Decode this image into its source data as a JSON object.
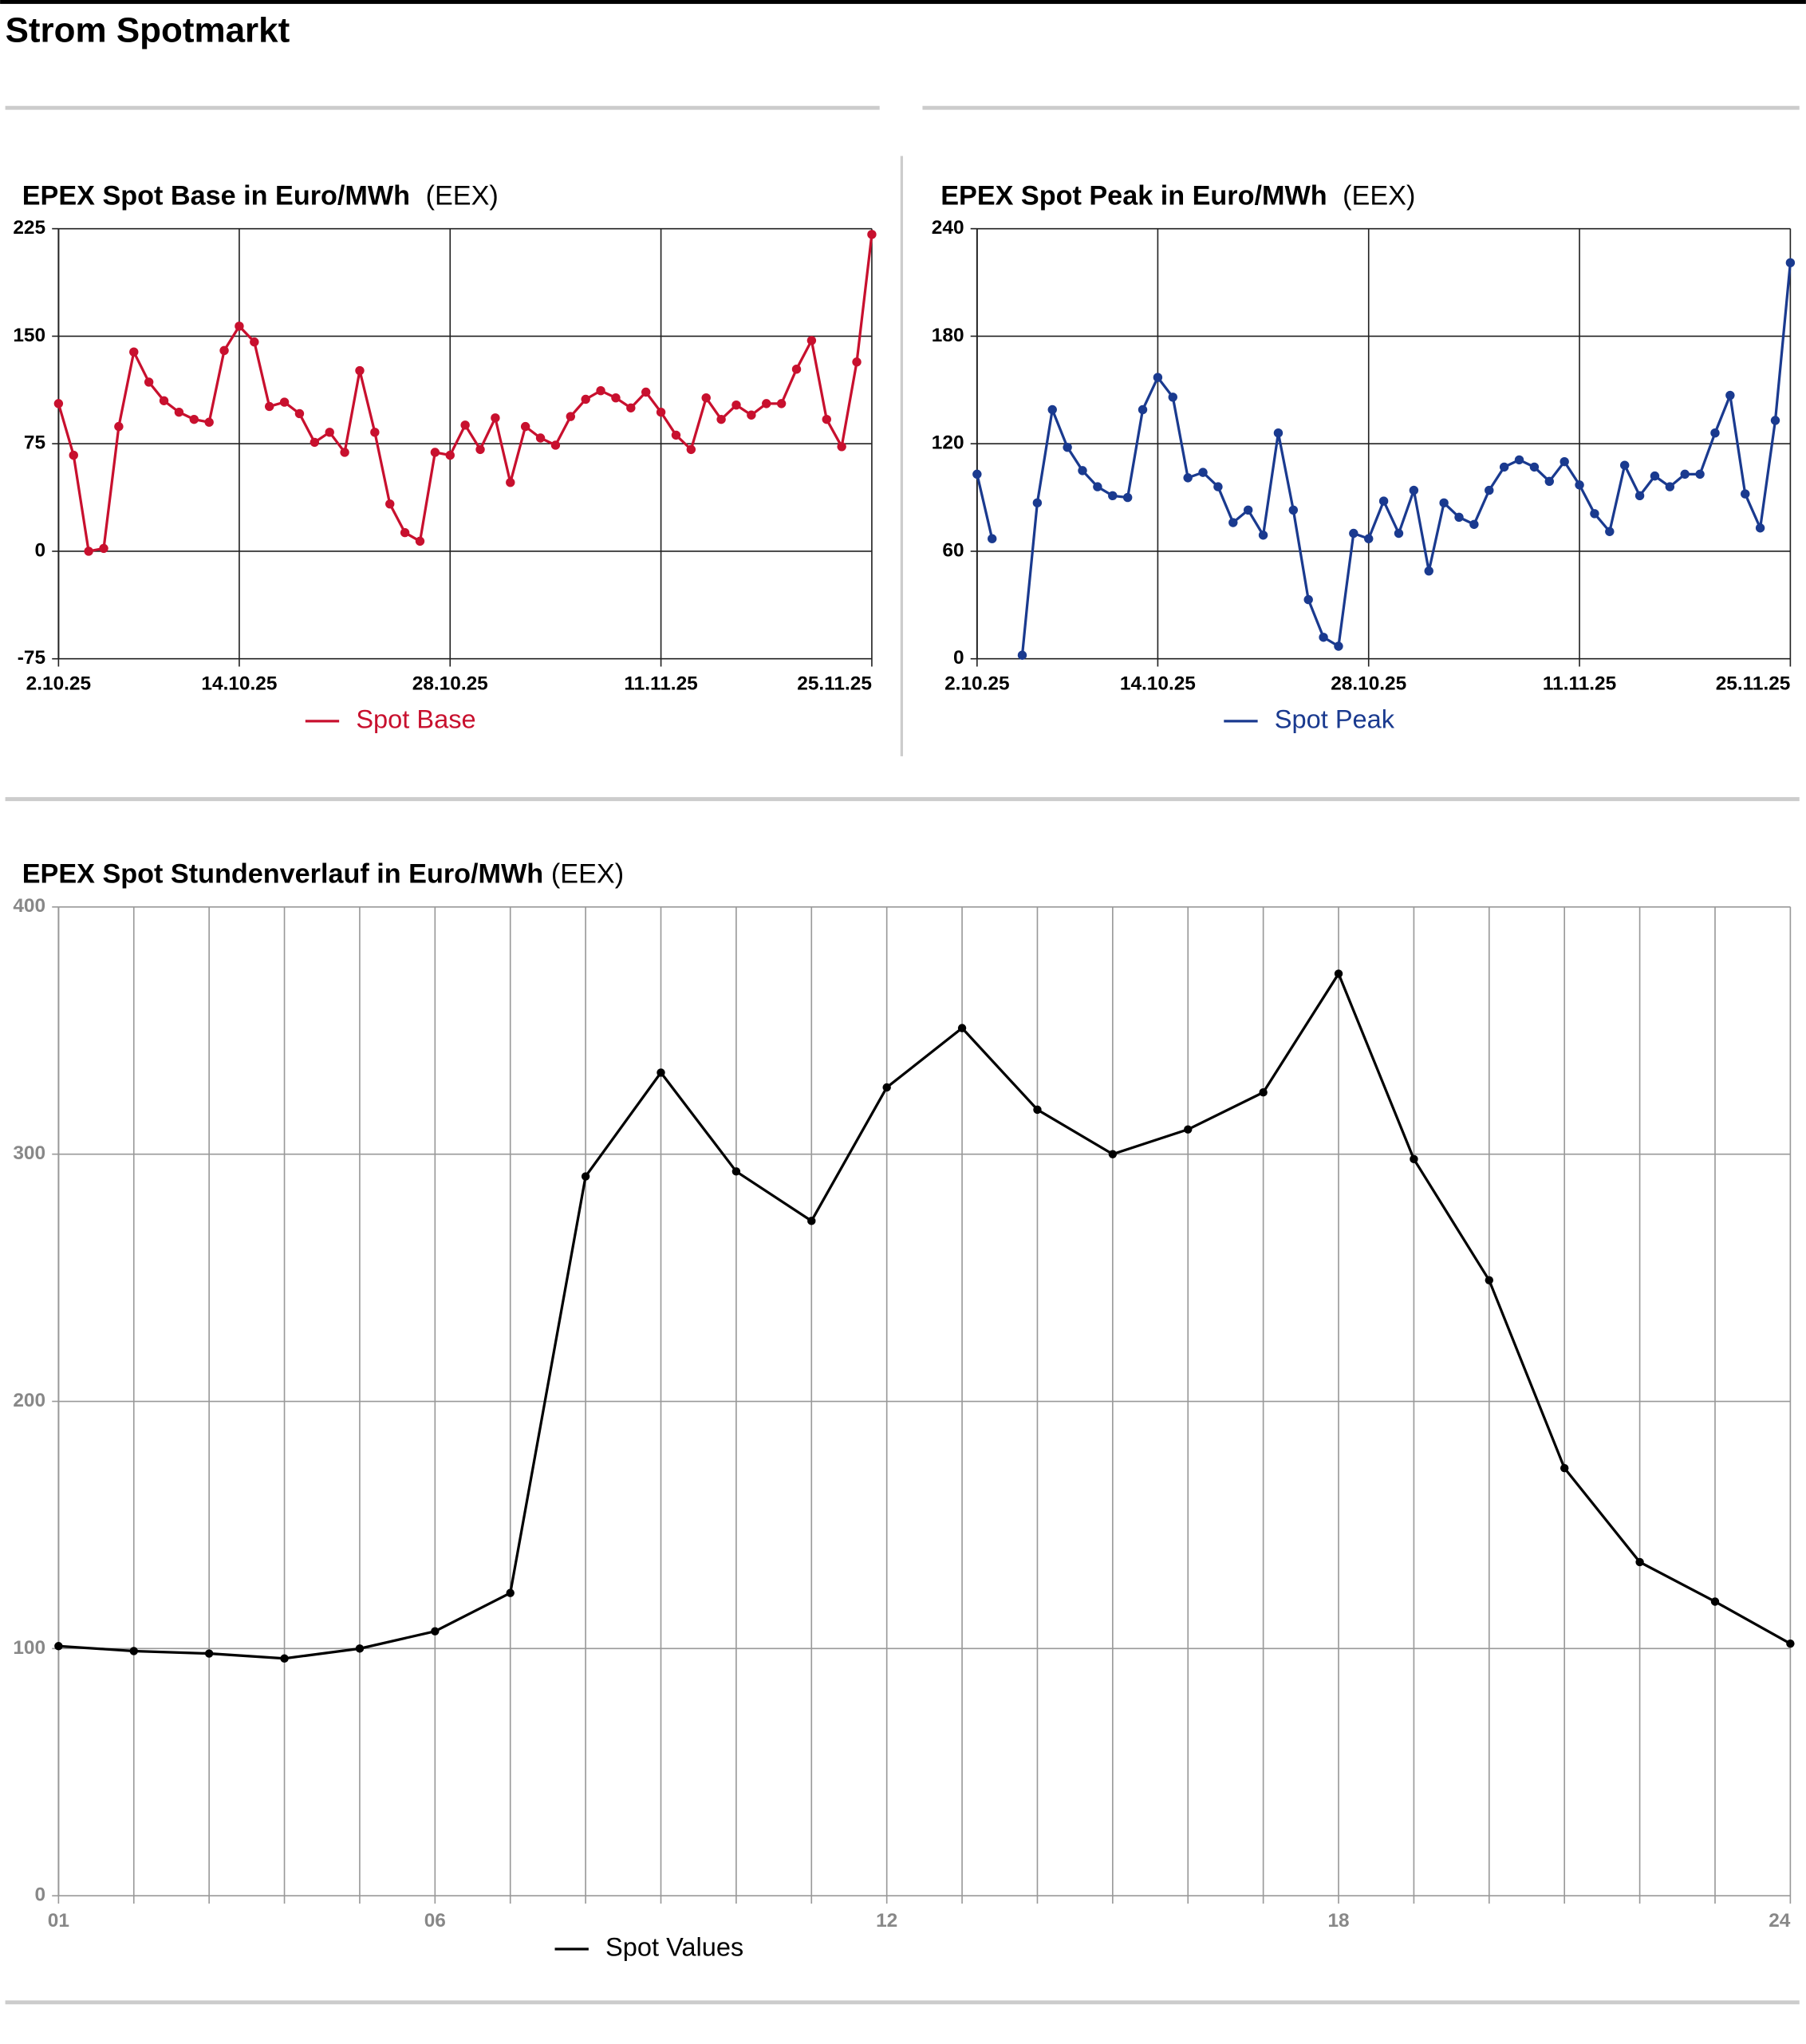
{
  "title": "Strom Spotmarkt",
  "chart_data": [
    {
      "type": "line",
      "title": "EPEX Spot Base in Euro/MWh",
      "source": "(EEX)",
      "categories": [
        "2.10.25",
        null,
        null,
        null,
        null,
        null,
        null,
        null,
        null,
        null,
        null,
        null,
        "14.10.25",
        null,
        null,
        null,
        null,
        null,
        null,
        null,
        null,
        null,
        null,
        null,
        null,
        null,
        "28.10.25",
        null,
        null,
        null,
        null,
        null,
        null,
        null,
        null,
        null,
        null,
        null,
        null,
        null,
        "11.11.25",
        null,
        null,
        null,
        null,
        null,
        null,
        null,
        null,
        null,
        null,
        null,
        null,
        null,
        "25.11.25"
      ],
      "series": [
        {
          "name": "Spot Base",
          "color": "#c8102e",
          "values": [
            103,
            67,
            0,
            2,
            87,
            139,
            118,
            105,
            97,
            92,
            90,
            140,
            157,
            146,
            101,
            104,
            96,
            76,
            83,
            69,
            126,
            83,
            33,
            13,
            7,
            69,
            67,
            88,
            71,
            93,
            48,
            87,
            79,
            74,
            94,
            106,
            112,
            107,
            100,
            111,
            97,
            81,
            71,
            107,
            92,
            102,
            95,
            103,
            103,
            127,
            147,
            92,
            73,
            132,
            221
          ]
        }
      ],
      "ylim": [
        -75,
        225
      ],
      "yticks": [
        -75,
        0,
        75,
        150,
        225
      ],
      "grid": true,
      "xgrid": "labeled",
      "legend": "bottom"
    },
    {
      "type": "line",
      "title": "EPEX Spot Peak in Euro/MWh",
      "source": "(EEX)",
      "categories": [
        "2.10.25",
        null,
        null,
        null,
        null,
        null,
        null,
        null,
        null,
        null,
        null,
        null,
        "14.10.25",
        null,
        null,
        null,
        null,
        null,
        null,
        null,
        null,
        null,
        null,
        null,
        null,
        null,
        "28.10.25",
        null,
        null,
        null,
        null,
        null,
        null,
        null,
        null,
        null,
        null,
        null,
        null,
        null,
        "11.11.25",
        null,
        null,
        null,
        null,
        null,
        null,
        null,
        null,
        null,
        null,
        null,
        null,
        null,
        "25.11.25"
      ],
      "series": [
        {
          "name": "Spot Peak",
          "color": "#1a3a8f",
          "values": [
            103,
            67,
            null,
            2,
            87,
            139,
            118,
            105,
            96,
            91,
            90,
            139,
            157,
            146,
            101,
            104,
            96,
            76,
            83,
            69,
            126,
            83,
            33,
            12,
            7,
            70,
            67,
            88,
            70,
            94,
            49,
            87,
            79,
            75,
            94,
            107,
            111,
            107,
            99,
            110,
            97,
            81,
            71,
            108,
            91,
            102,
            96,
            103,
            103,
            126,
            147,
            92,
            73,
            133,
            221
          ]
        }
      ],
      "ylim": [
        0,
        240
      ],
      "yticks": [
        0,
        60,
        120,
        180,
        240
      ],
      "grid": true,
      "xgrid": "labeled",
      "legend": "bottom"
    },
    {
      "type": "line",
      "title": "EPEX Spot Stundenverlauf in Euro/MWh",
      "source": "(EEX)",
      "categories": [
        "01",
        null,
        null,
        null,
        null,
        "06",
        null,
        null,
        null,
        null,
        null,
        "12",
        null,
        null,
        null,
        null,
        null,
        "18",
        null,
        null,
        null,
        null,
        null,
        "24"
      ],
      "series": [
        {
          "name": "Spot Values",
          "color": "#000000",
          "values": [
            101,
            99,
            98,
            96,
            100,
            107,
            122.5,
            291,
            333,
            293,
            273,
            327,
            351,
            318,
            300,
            310,
            325,
            373,
            298,
            249,
            173,
            135,
            119,
            102
          ]
        }
      ],
      "ylim": [
        0,
        400
      ],
      "yticks": [
        0,
        100,
        200,
        300,
        400
      ],
      "grid": true,
      "xgrid": "all",
      "legend": "bottom"
    }
  ]
}
